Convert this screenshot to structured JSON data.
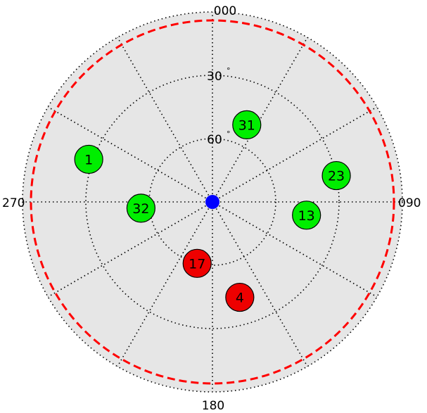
{
  "compass": {
    "north": "000",
    "east": "090",
    "south": "180",
    "west": "270"
  },
  "elevation_labels": [
    {
      "text": "30",
      "elevation": 30
    },
    {
      "text": "60",
      "elevation": 60
    }
  ],
  "degree_symbol": "°",
  "colors": {
    "background": "#ffffff",
    "plot_fill": "#e6e6e6",
    "grid": "#000000",
    "mask": "#ff0000",
    "used": "#00ee00",
    "unused": "#ee0000",
    "receiver": "#0000ff"
  },
  "mask_elevation_deg": 4,
  "satellites": [
    {
      "prn": "31",
      "azimuth": 24,
      "elevation": 50,
      "status": "used"
    },
    {
      "prn": "1",
      "azimuth": 289,
      "elevation": 28,
      "status": "used"
    },
    {
      "prn": "23",
      "azimuth": 78,
      "elevation": 30,
      "status": "used"
    },
    {
      "prn": "13",
      "azimuth": 98,
      "elevation": 45,
      "status": "used"
    },
    {
      "prn": "32",
      "azimuth": 265,
      "elevation": 56,
      "status": "used"
    },
    {
      "prn": "17",
      "azimuth": 194,
      "elevation": 60,
      "status": "unused"
    },
    {
      "prn": "4",
      "azimuth": 164,
      "elevation": 43,
      "status": "unused"
    }
  ]
}
